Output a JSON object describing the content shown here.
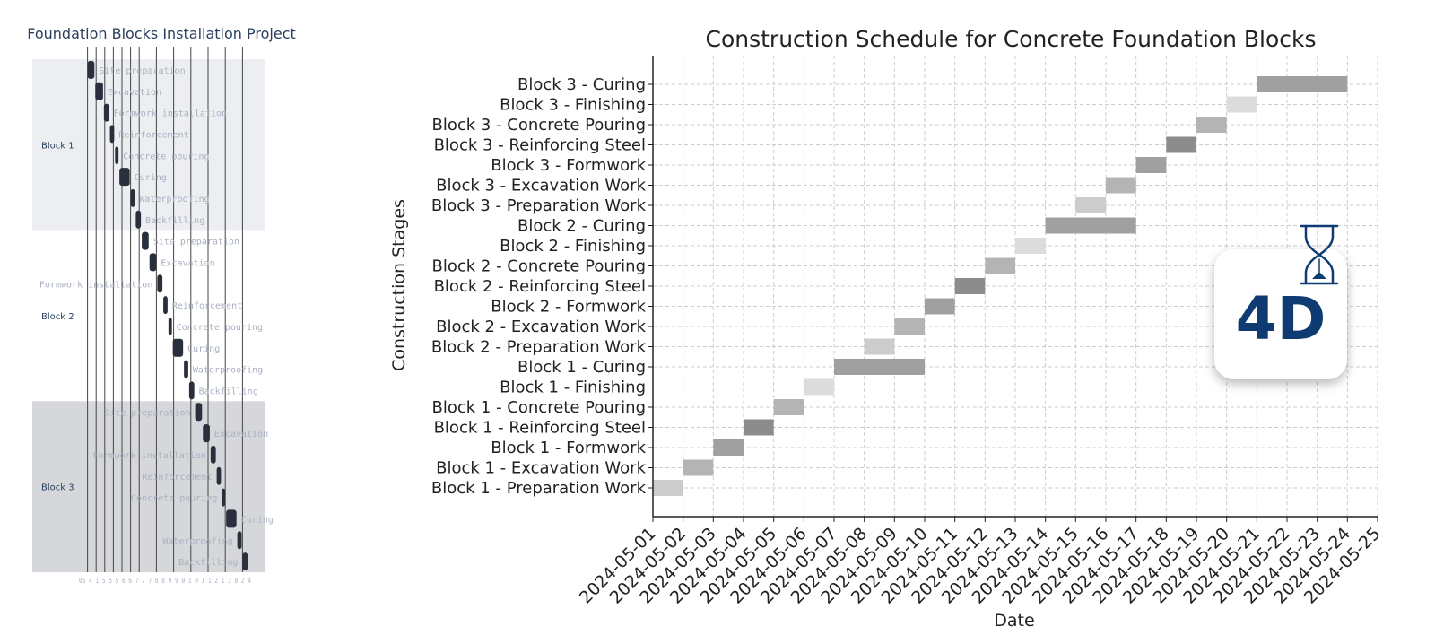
{
  "badge": {
    "text": "4D",
    "icon": "hourglass-icon",
    "color": "#0d3b72"
  },
  "chart_data": [
    {
      "type": "gantt",
      "title": "Foundation Blocks Installation Project",
      "groups": [
        "Block 1",
        "Block 2",
        "Block 3"
      ],
      "group_colors": [
        "#eceef1",
        "#ffffff",
        "#d6d7da"
      ],
      "bar_color": "#2a2f3d",
      "task_label_color": "#a9b1c2",
      "tasks": [
        {
          "group": "Block 1",
          "name": "Site preparation",
          "start": 0.0,
          "end": 0.4,
          "label_side": "right"
        },
        {
          "group": "Block 1",
          "name": "Excavation",
          "start": 0.45,
          "end": 0.9,
          "label_side": "right"
        },
        {
          "group": "Block 1",
          "name": "Formwork installation",
          "start": 0.95,
          "end": 1.25,
          "label_side": "right"
        },
        {
          "group": "Block 1",
          "name": "Reinforcement",
          "start": 1.3,
          "end": 1.55,
          "label_side": "right"
        },
        {
          "group": "Block 1",
          "name": "Concrete pouring",
          "start": 1.6,
          "end": 1.8,
          "label_side": "right"
        },
        {
          "group": "Block 1",
          "name": "Curing",
          "start": 1.85,
          "end": 2.45,
          "label_side": "right"
        },
        {
          "group": "Block 1",
          "name": "Waterproofing",
          "start": 2.5,
          "end": 2.75,
          "label_side": "right"
        },
        {
          "group": "Block 1",
          "name": "Backfilling",
          "start": 2.8,
          "end": 3.1,
          "label_side": "right"
        },
        {
          "group": "Block 2",
          "name": "Site preparation",
          "start": 3.15,
          "end": 3.55,
          "label_side": "right"
        },
        {
          "group": "Block 2",
          "name": "Excavation",
          "start": 3.6,
          "end": 4.0,
          "label_side": "right"
        },
        {
          "group": "Block 2",
          "name": "Formwork installation",
          "start": 4.05,
          "end": 4.35,
          "label_side": "left"
        },
        {
          "group": "Block 2",
          "name": "Reinforcement",
          "start": 4.4,
          "end": 4.65,
          "label_side": "right"
        },
        {
          "group": "Block 2",
          "name": "Concrete pouring",
          "start": 4.7,
          "end": 4.9,
          "label_side": "right"
        },
        {
          "group": "Block 2",
          "name": "Curing",
          "start": 4.95,
          "end": 5.55,
          "label_side": "right"
        },
        {
          "group": "Block 2",
          "name": "Waterproofing",
          "start": 5.6,
          "end": 5.85,
          "label_side": "right"
        },
        {
          "group": "Block 2",
          "name": "Backfilling",
          "start": 5.9,
          "end": 6.2,
          "label_side": "right"
        },
        {
          "group": "Block 3",
          "name": "Site preparation",
          "start": 6.25,
          "end": 6.65,
          "label_side": "left"
        },
        {
          "group": "Block 3",
          "name": "Excavation",
          "start": 6.7,
          "end": 7.1,
          "label_side": "right"
        },
        {
          "group": "Block 3",
          "name": "Formwork installation",
          "start": 7.15,
          "end": 7.45,
          "label_side": "left"
        },
        {
          "group": "Block 3",
          "name": "Reinforcement",
          "start": 7.5,
          "end": 7.75,
          "label_side": "left"
        },
        {
          "group": "Block 3",
          "name": "Concrete pouring",
          "start": 7.8,
          "end": 8.0,
          "label_side": "left"
        },
        {
          "group": "Block 3",
          "name": "Curing",
          "start": 8.05,
          "end": 8.65,
          "label_side": "right"
        },
        {
          "group": "Block 3",
          "name": "Waterproofing",
          "start": 8.7,
          "end": 8.95,
          "label_side": "left"
        },
        {
          "group": "Block 3",
          "name": "Backfilling",
          "start": 9.0,
          "end": 9.3,
          "label_side": "left"
        }
      ],
      "xlim": [
        -0.5,
        9.5
      ],
      "vertical_lines": [
        0,
        0.5,
        1.0,
        1.5,
        2.0,
        2.5,
        3.0,
        4.0,
        5.0,
        6.0,
        7.0,
        8.0,
        9.0
      ],
      "xtick_text": "05 4 1 5 5 5 6 6 7 7 7 8 8 9 9 0 1 0 1 1 2 1 3 0 2 4"
    },
    {
      "type": "gantt",
      "title": "Construction Schedule for Concrete Foundation Blocks",
      "xlabel": "Date",
      "ylabel": "Construction Stages",
      "xlim": [
        "2024-05-01",
        "2024-05-25"
      ],
      "xticks": [
        "2024-05-01",
        "2024-05-02",
        "2024-05-03",
        "2024-05-04",
        "2024-05-05",
        "2024-05-06",
        "2024-05-07",
        "2024-05-08",
        "2024-05-09",
        "2024-05-10",
        "2024-05-11",
        "2024-05-12",
        "2024-05-13",
        "2024-05-14",
        "2024-05-15",
        "2024-05-16",
        "2024-05-17",
        "2024-05-18",
        "2024-05-19",
        "2024-05-20",
        "2024-05-21",
        "2024-05-22",
        "2024-05-23",
        "2024-05-24",
        "2024-05-25"
      ],
      "grid": true,
      "tasks": [
        {
          "name": "Block 1 - Preparation Work",
          "start": "2024-05-01",
          "end": "2024-05-02",
          "color": "#cccccc"
        },
        {
          "name": "Block 1 - Excavation Work",
          "start": "2024-05-02",
          "end": "2024-05-03",
          "color": "#b4b4b4"
        },
        {
          "name": "Block 1 - Formwork",
          "start": "2024-05-03",
          "end": "2024-05-04",
          "color": "#a0a0a0"
        },
        {
          "name": "Block 1 - Reinforcing Steel",
          "start": "2024-05-04",
          "end": "2024-05-05",
          "color": "#8c8c8c"
        },
        {
          "name": "Block 1 - Concrete Pouring",
          "start": "2024-05-05",
          "end": "2024-05-06",
          "color": "#b4b4b4"
        },
        {
          "name": "Block 1 - Finishing",
          "start": "2024-05-06",
          "end": "2024-05-07",
          "color": "#dcdcdc"
        },
        {
          "name": "Block 1 - Curing",
          "start": "2024-05-07",
          "end": "2024-05-10",
          "color": "#a0a0a0"
        },
        {
          "name": "Block 2 - Preparation Work",
          "start": "2024-05-08",
          "end": "2024-05-09",
          "color": "#cccccc"
        },
        {
          "name": "Block 2 - Excavation Work",
          "start": "2024-05-09",
          "end": "2024-05-10",
          "color": "#b4b4b4"
        },
        {
          "name": "Block 2 - Formwork",
          "start": "2024-05-10",
          "end": "2024-05-11",
          "color": "#a0a0a0"
        },
        {
          "name": "Block 2 - Reinforcing Steel",
          "start": "2024-05-11",
          "end": "2024-05-12",
          "color": "#8c8c8c"
        },
        {
          "name": "Block 2 - Concrete Pouring",
          "start": "2024-05-12",
          "end": "2024-05-13",
          "color": "#b4b4b4"
        },
        {
          "name": "Block 2 - Finishing",
          "start": "2024-05-13",
          "end": "2024-05-14",
          "color": "#dcdcdc"
        },
        {
          "name": "Block 2 - Curing",
          "start": "2024-05-14",
          "end": "2024-05-17",
          "color": "#a0a0a0"
        },
        {
          "name": "Block 3 - Preparation Work",
          "start": "2024-05-15",
          "end": "2024-05-16",
          "color": "#cccccc"
        },
        {
          "name": "Block 3 - Excavation Work",
          "start": "2024-05-16",
          "end": "2024-05-17",
          "color": "#b4b4b4"
        },
        {
          "name": "Block 3 - Formwork",
          "start": "2024-05-17",
          "end": "2024-05-18",
          "color": "#a0a0a0"
        },
        {
          "name": "Block 3 - Reinforcing Steel",
          "start": "2024-05-18",
          "end": "2024-05-19",
          "color": "#8c8c8c"
        },
        {
          "name": "Block 3 - Concrete Pouring",
          "start": "2024-05-19",
          "end": "2024-05-20",
          "color": "#b4b4b4"
        },
        {
          "name": "Block 3 - Finishing",
          "start": "2024-05-20",
          "end": "2024-05-21",
          "color": "#dcdcdc"
        },
        {
          "name": "Block 3 - Curing",
          "start": "2024-05-21",
          "end": "2024-05-24",
          "color": "#a0a0a0"
        }
      ]
    }
  ]
}
